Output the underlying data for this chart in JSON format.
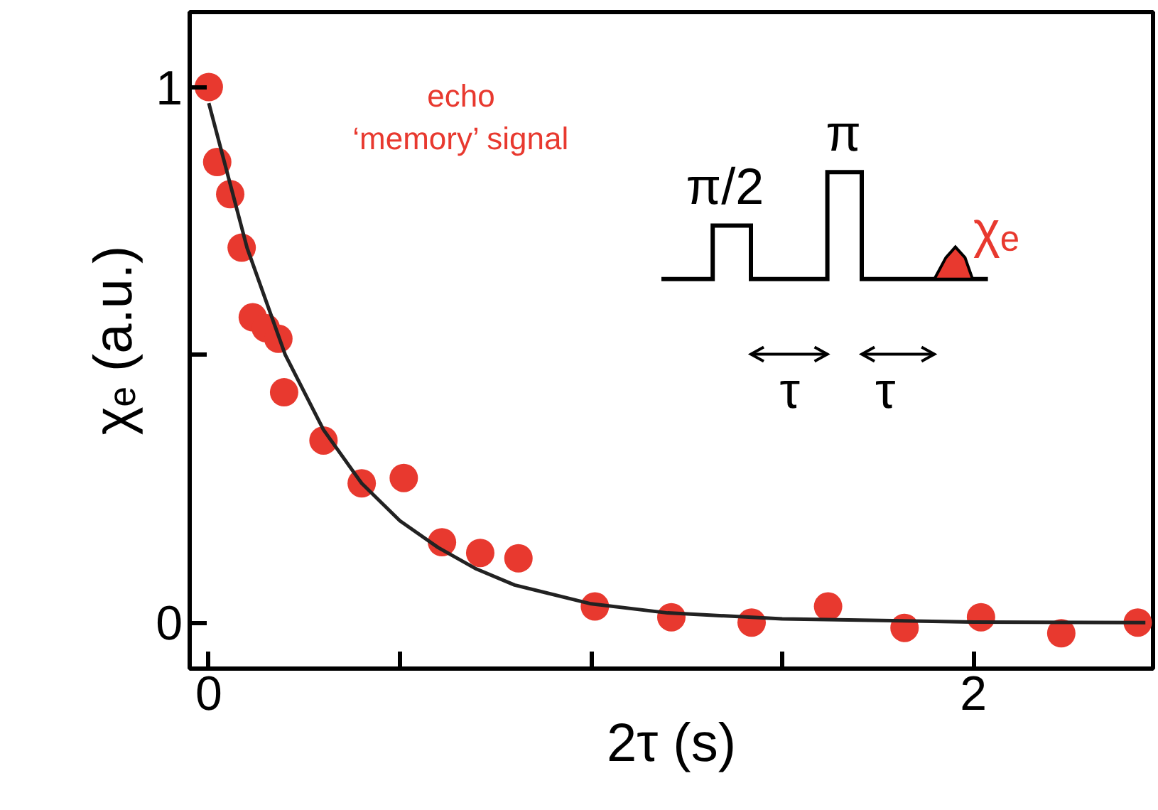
{
  "chart_data": {
    "type": "scatter",
    "xlabel": "2τ (s)",
    "ylabel": "χₑ (a.u.)",
    "xlim": [
      -0.05,
      2.47
    ],
    "ylim": [
      -0.086,
      1.14
    ],
    "xticks": [
      0,
      {
        "value": 0.5,
        "label": null
      },
      {
        "value": 1,
        "label": null
      },
      {
        "value": 1.5,
        "label": null
      },
      2
    ],
    "yticks": [
      0,
      {
        "value": 0.5,
        "label": null
      },
      1
    ],
    "grid": false,
    "annotations": [
      "echo\n‘memory’ signal",
      "π/2",
      "π",
      "χₑ",
      "τ",
      "τ"
    ],
    "series": [
      {
        "marker": "circle",
        "color": "#e8392f",
        "x": [
          0,
          0.022,
          0.056,
          0.086,
          0.115,
          0.149,
          0.182,
          0.197,
          0.3,
          0.4,
          0.51,
          0.61,
          0.71,
          0.81,
          1.01,
          1.21,
          1.42,
          1.62,
          1.82,
          2.02,
          2.23,
          2.43
        ],
        "values": [
          1.0,
          0.86,
          0.8,
          0.7,
          0.57,
          0.55,
          0.53,
          0.43,
          0.34,
          0.26,
          0.27,
          0.15,
          0.13,
          0.12,
          0.03,
          0.01,
          0.0,
          0.03,
          -0.01,
          0.01,
          -0.02,
          0.0
        ]
      },
      {
        "type": "line",
        "marker": "none",
        "color": "#222222",
        "line_style": "solid",
        "x": [
          0,
          0.1,
          0.2,
          0.3,
          0.4,
          0.5,
          0.6,
          0.7,
          0.8,
          1.0,
          1.2,
          1.5,
          2.0,
          2.45
        ],
        "values": [
          0.97,
          0.7,
          0.5,
          0.36,
          0.26,
          0.19,
          0.14,
          0.1,
          0.07,
          0.035,
          0.018,
          0.007,
          0.001,
          0.0
        ]
      }
    ]
  }
}
